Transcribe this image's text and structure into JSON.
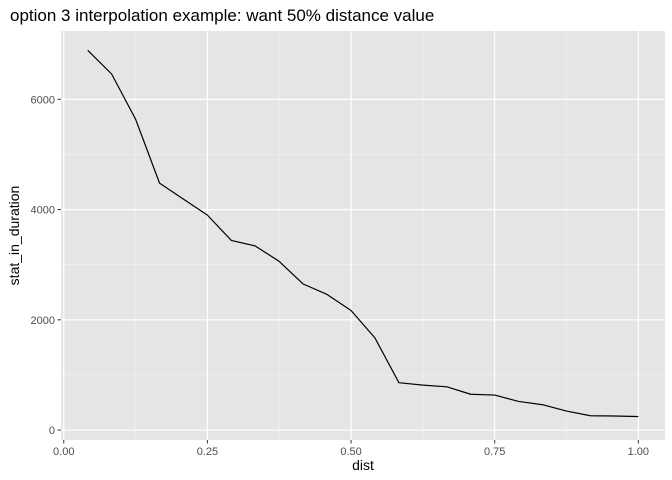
{
  "chart_data": {
    "type": "line",
    "title": "option 3 interpolation example: want 50% distance value",
    "xlabel": "dist",
    "ylabel": "stat_in_duration",
    "xlim": [
      -0.0048,
      1.0464
    ],
    "ylim": [
      -180,
      7240
    ],
    "x_ticks": [
      0.0,
      0.25,
      0.5,
      0.75,
      1.0
    ],
    "x_tick_labels": [
      "0.00",
      "0.25",
      "0.50",
      "0.75",
      "1.00"
    ],
    "y_ticks": [
      0,
      2000,
      4000,
      6000
    ],
    "y_tick_labels": [
      "0",
      "2000",
      "4000",
      "6000"
    ],
    "grid": true,
    "legend": "none",
    "colors": {
      "panel_background": "#e5e5e5",
      "grid_major": "#ffffff",
      "grid_minor": "#f2f2f2",
      "line": "#000000",
      "tick_text": "#4d4d4d"
    },
    "series": [
      {
        "x": [
          0.0417,
          0.0833,
          0.125,
          0.1667,
          0.2083,
          0.25,
          0.2917,
          0.3333,
          0.375,
          0.4167,
          0.4583,
          0.5,
          0.5417,
          0.5833,
          0.625,
          0.6667,
          0.7083,
          0.75,
          0.7917,
          0.8333,
          0.875,
          0.9167,
          0.9583,
          1.0
        ],
        "y": [
          6890,
          6460,
          5640,
          4480,
          4190,
          3900,
          3440,
          3340,
          3060,
          2650,
          2460,
          2170,
          1670,
          860,
          815,
          785,
          650,
          635,
          520,
          460,
          345,
          260,
          255,
          245
        ]
      }
    ]
  }
}
